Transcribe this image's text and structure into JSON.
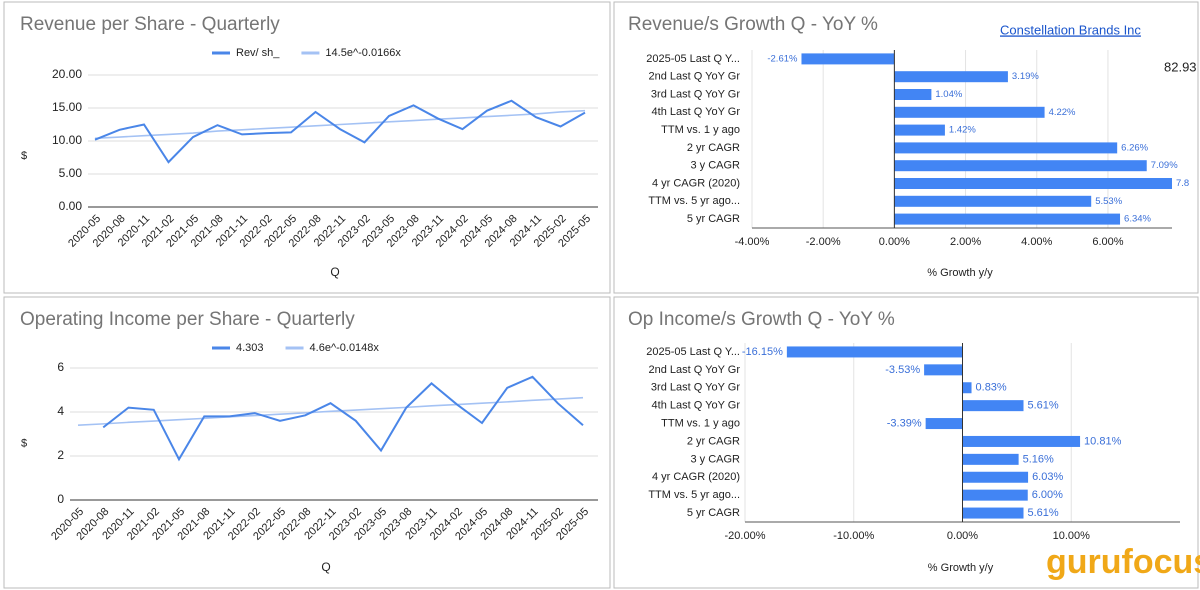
{
  "header": {
    "company": "Constellation Brands Inc",
    "stray_value": 82.93,
    "logo": "gurufocus"
  },
  "chart_data": [
    {
      "type": "line",
      "title": "Revenue per Share - Quarterly",
      "xlabel": "Q",
      "ylabel": "$",
      "categories": [
        "2020-05",
        "2020-08",
        "2020-11",
        "2021-02",
        "2021-05",
        "2021-08",
        "2021-11",
        "2022-02",
        "2022-05",
        "2022-08",
        "2022-11",
        "2023-02",
        "2023-05",
        "2023-08",
        "2023-11",
        "2024-02",
        "2024-05",
        "2024-08",
        "2024-11",
        "2025-02",
        "2025-05"
      ],
      "series": [
        {
          "name": "Rev/ sh_",
          "color": "#4a86e8",
          "values": [
            10.2,
            11.7,
            12.5,
            6.8,
            10.6,
            12.4,
            11.0,
            11.2,
            11.3,
            14.4,
            11.8,
            9.8,
            13.8,
            15.4,
            13.4,
            11.8,
            14.6,
            16.1,
            13.6,
            12.2,
            14.3
          ]
        },
        {
          "name": "14.5e^-0.0166x",
          "color": "#a4c2f4",
          "values": [
            10.4,
            10.6,
            10.8,
            11.0,
            11.2,
            11.5,
            11.7,
            11.9,
            12.1,
            12.3,
            12.5,
            12.7,
            12.9,
            13.1,
            13.3,
            13.5,
            13.7,
            13.9,
            14.1,
            14.4,
            14.6
          ]
        }
      ],
      "ylim": [
        0,
        20
      ],
      "yticks": [
        {
          "value": 0,
          "label": "0.00"
        },
        {
          "value": 5,
          "label": "5.00"
        },
        {
          "value": 10,
          "label": "10.00"
        },
        {
          "value": 15,
          "label": "15.00"
        },
        {
          "value": 20,
          "label": "20.00"
        }
      ],
      "grid": true
    },
    {
      "type": "hbar",
      "title": "Revenue/s Growth Q - YoY %",
      "xlabel": "% Growth y/y",
      "color": "#4285f4",
      "categories": [
        "2025-05 Last Q Y...",
        "2nd Last Q YoY Gr",
        "3rd Last Q YoY Gr",
        "4th Last Q YoY Gr",
        "TTM vs. 1 y ago",
        "2 yr CAGR",
        "3 y CAGR",
        "4 yr CAGR (2020)",
        "TTM vs. 5 yr ago...",
        "5 yr CAGR"
      ],
      "values": [
        -2.61,
        3.19,
        1.04,
        4.22,
        1.42,
        6.26,
        7.09,
        7.8,
        5.53,
        6.34
      ],
      "value_labels": [
        "-2.61%",
        "3.19%",
        "1.04%",
        "4.22%",
        "1.42%",
        "6.26%",
        "7.09%",
        "7.8",
        "5.53%",
        "6.34%"
      ],
      "xlim": [
        -4,
        7.8
      ],
      "xticks": [
        {
          "value": -4,
          "label": "-4.00%"
        },
        {
          "value": -2,
          "label": "-2.00%"
        },
        {
          "value": 0,
          "label": "0.00%"
        },
        {
          "value": 2,
          "label": "2.00%"
        },
        {
          "value": 4,
          "label": "4.00%"
        },
        {
          "value": 6,
          "label": "6.00%"
        }
      ],
      "grid": true
    },
    {
      "type": "line",
      "title": "Operating Income per Share - Quarterly",
      "xlabel": "Q",
      "ylabel": "$",
      "categories": [
        "2020-05",
        "2020-08",
        "2020-11",
        "2021-02",
        "2021-05",
        "2021-08",
        "2021-11",
        "2022-02",
        "2022-05",
        "2022-08",
        "2022-11",
        "2023-02",
        "2023-05",
        "2023-08",
        "2023-11",
        "2024-02",
        "2024-05",
        "2024-08",
        "2024-11",
        "2025-02",
        "2025-05"
      ],
      "series": [
        {
          "name": "4.303",
          "color": "#4a86e8",
          "values": [
            null,
            3.3,
            4.2,
            4.1,
            1.85,
            3.8,
            3.8,
            3.95,
            3.6,
            3.85,
            4.4,
            3.6,
            2.25,
            4.2,
            5.3,
            4.35,
            3.5,
            5.1,
            5.6,
            4.4,
            3.4
          ]
        },
        {
          "name": "4.6e^-0.0148x",
          "color": "#a4c2f4",
          "values": [
            3.4,
            3.46,
            3.53,
            3.59,
            3.65,
            3.71,
            3.78,
            3.84,
            3.9,
            3.96,
            4.03,
            4.09,
            4.15,
            4.21,
            4.28,
            4.34,
            4.4,
            4.46,
            4.53,
            4.59,
            4.65
          ]
        }
      ],
      "ylim": [
        0,
        6.5
      ],
      "yticks": [
        0,
        2,
        4,
        6
      ],
      "grid": true
    },
    {
      "type": "hbar",
      "title": "Op Income/s Growth Q - YoY %",
      "xlabel": "% Growth y/y",
      "color": "#4285f4",
      "categories": [
        "2025-05 Last Q Y...",
        "2nd Last Q YoY Gr",
        "3rd Last Q YoY Gr",
        "4th Last Q YoY Gr",
        "TTM vs. 1 y ago",
        "2 yr CAGR",
        "3 y CAGR",
        "4 yr CAGR (2020)",
        "TTM vs. 5 yr ago...",
        "5 yr CAGR"
      ],
      "values": [
        -16.15,
        -3.53,
        0.83,
        5.61,
        -3.39,
        10.81,
        5.16,
        6.03,
        6.0,
        5.61
      ],
      "value_labels": [
        "-16.15%",
        "-3.53%",
        "0.83%",
        "5.61%",
        "-3.39%",
        "10.81%",
        "5.16%",
        "6.03%",
        "6.00%",
        "5.61%"
      ],
      "xlim": [
        -20,
        20
      ],
      "xticks": [
        {
          "value": -20,
          "label": "-20.00%"
        },
        {
          "value": -10,
          "label": "-10.00%"
        },
        {
          "value": 0,
          "label": "0.00%"
        },
        {
          "value": 10,
          "label": "10.00%"
        }
      ],
      "grid": true
    }
  ]
}
